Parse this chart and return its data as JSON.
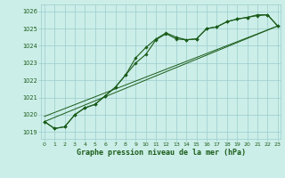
{
  "title": "Graphe pression niveau de la mer (hPa)",
  "background_color": "#cceee8",
  "grid_color": "#99cccc",
  "line_color": "#1a5c1a",
  "marker_color": "#1a5c1a",
  "x_ticks": [
    0,
    1,
    2,
    3,
    4,
    5,
    6,
    7,
    8,
    9,
    10,
    11,
    12,
    13,
    14,
    15,
    16,
    17,
    18,
    19,
    20,
    21,
    22,
    23
  ],
  "y_ticks": [
    1019,
    1020,
    1021,
    1022,
    1023,
    1024,
    1025,
    1026
  ],
  "ylim": [
    1018.6,
    1026.4
  ],
  "xlim": [
    -0.3,
    23.3
  ],
  "series1": [
    1019.6,
    1019.2,
    1019.3,
    1020.0,
    1020.4,
    1020.6,
    1021.1,
    1021.6,
    1022.3,
    1023.0,
    1023.5,
    1024.35,
    1024.7,
    1024.4,
    1024.35,
    1024.4,
    1025.0,
    1025.1,
    1025.4,
    1025.55,
    1025.65,
    1025.75,
    1025.8,
    1025.15
  ],
  "series2": [
    1019.6,
    1019.2,
    1019.3,
    1020.0,
    1020.4,
    1020.6,
    1021.1,
    1021.6,
    1022.3,
    1023.3,
    1023.9,
    1024.4,
    1024.75,
    1024.5,
    1024.35,
    1024.4,
    1025.0,
    1025.1,
    1025.4,
    1025.55,
    1025.65,
    1025.8,
    1025.8,
    1025.15
  ],
  "line3_x": [
    0,
    23
  ],
  "line3_y": [
    1019.6,
    1025.15
  ],
  "line4_x": [
    0,
    23
  ],
  "line4_y": [
    1019.9,
    1025.15
  ]
}
